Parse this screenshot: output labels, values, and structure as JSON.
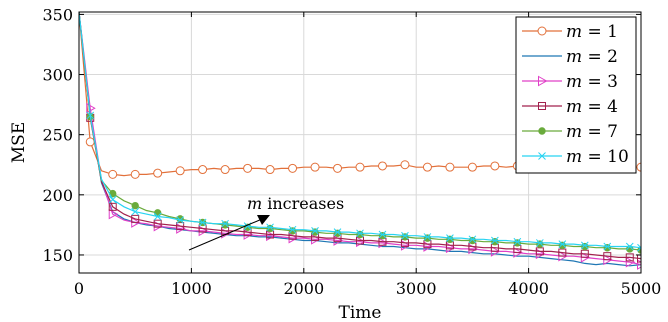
{
  "chart_data": {
    "type": "line",
    "xlabel": "Time",
    "ylabel": "MSE",
    "xlim": [
      0,
      5000
    ],
    "ylim": [
      135,
      352
    ],
    "xticks": [
      0,
      1000,
      2000,
      3000,
      4000,
      5000
    ],
    "yticks": [
      150,
      200,
      250,
      300,
      350
    ],
    "grid": true,
    "legend_position": "top-right",
    "annotation": {
      "prefix": "m",
      "text": " increases"
    },
    "series": [
      {
        "name": "m = 1",
        "label_var": "m",
        "label_val": "1",
        "color": "#e2703a",
        "marker": "circle-open",
        "x": [
          0,
          100,
          200,
          300,
          400,
          500,
          600,
          700,
          800,
          900,
          1000,
          1100,
          1200,
          1300,
          1400,
          1500,
          1600,
          1700,
          1800,
          1900,
          2000,
          2100,
          2200,
          2300,
          2400,
          2500,
          2600,
          2700,
          2800,
          2900,
          3000,
          3100,
          3200,
          3300,
          3400,
          3500,
          3600,
          3700,
          3800,
          3900,
          4000,
          4100,
          4200,
          4300,
          4400,
          4500,
          4600,
          4700,
          4800,
          4900,
          5000
        ],
        "y": [
          352,
          244,
          220,
          217,
          216,
          217,
          217,
          218,
          219,
          220,
          221,
          221,
          222,
          221,
          222,
          222,
          222,
          221,
          222,
          222,
          223,
          223,
          223,
          222,
          223,
          223,
          224,
          224,
          224,
          225,
          223,
          223,
          224,
          223,
          223,
          223,
          224,
          224,
          223,
          224,
          224,
          223,
          223,
          224,
          224,
          223,
          224,
          223,
          224,
          223,
          223
        ]
      },
      {
        "name": "m = 2",
        "label_var": "m",
        "label_val": "2",
        "color": "#1f77b4",
        "marker": "none",
        "x": [
          0,
          100,
          200,
          300,
          400,
          500,
          600,
          700,
          800,
          900,
          1000,
          1100,
          1200,
          1300,
          1400,
          1500,
          1600,
          1700,
          1800,
          1900,
          2000,
          2100,
          2200,
          2300,
          2400,
          2500,
          2600,
          2700,
          2800,
          2900,
          3000,
          3100,
          3200,
          3300,
          3400,
          3500,
          3600,
          3700,
          3800,
          3900,
          4000,
          4100,
          4200,
          4300,
          4400,
          4500,
          4600,
          4700,
          4800,
          4900,
          5000
        ],
        "y": [
          352,
          268,
          210,
          186,
          180,
          177,
          175,
          174,
          172,
          171,
          170,
          169,
          168,
          167,
          166,
          166,
          165,
          165,
          164,
          163,
          162,
          162,
          161,
          160,
          160,
          159,
          158,
          157,
          157,
          156,
          155,
          155,
          154,
          153,
          153,
          152,
          151,
          151,
          150,
          149,
          149,
          148,
          147,
          146,
          145,
          143,
          142,
          143,
          142,
          141,
          142
        ]
      },
      {
        "name": "m = 3",
        "label_var": "m",
        "label_val": "3",
        "color": "#e040c8",
        "marker": "triangle-right",
        "x": [
          0,
          100,
          200,
          300,
          400,
          500,
          600,
          700,
          800,
          900,
          1000,
          1100,
          1200,
          1300,
          1400,
          1500,
          1600,
          1700,
          1800,
          1900,
          2000,
          2100,
          2200,
          2300,
          2400,
          2500,
          2600,
          2700,
          2800,
          2900,
          3000,
          3100,
          3200,
          3300,
          3400,
          3500,
          3600,
          3700,
          3800,
          3900,
          4000,
          4100,
          4200,
          4300,
          4400,
          4500,
          4600,
          4700,
          4800,
          4900,
          5000
        ],
        "y": [
          352,
          272,
          212,
          184,
          179,
          177,
          176,
          174,
          173,
          172,
          170,
          170,
          169,
          168,
          167,
          167,
          166,
          166,
          165,
          164,
          164,
          163,
          163,
          162,
          161,
          161,
          160,
          160,
          159,
          158,
          158,
          157,
          157,
          156,
          155,
          155,
          154,
          153,
          153,
          152,
          151,
          151,
          150,
          149,
          149,
          148,
          147,
          146,
          145,
          144,
          142
        ]
      },
      {
        "name": "m = 4",
        "label_var": "m",
        "label_val": "4",
        "color": "#a2214d",
        "marker": "square-open",
        "x": [
          0,
          100,
          200,
          300,
          400,
          500,
          600,
          700,
          800,
          900,
          1000,
          1100,
          1200,
          1300,
          1400,
          1500,
          1600,
          1700,
          1800,
          1900,
          2000,
          2100,
          2200,
          2300,
          2400,
          2500,
          2600,
          2700,
          2800,
          2900,
          3000,
          3100,
          3200,
          3300,
          3400,
          3500,
          3600,
          3700,
          3800,
          3900,
          4000,
          4100,
          4200,
          4300,
          4400,
          4500,
          4600,
          4700,
          4800,
          4900,
          5000
        ],
        "y": [
          352,
          264,
          211,
          190,
          184,
          180,
          178,
          176,
          175,
          174,
          173,
          172,
          171,
          170,
          170,
          169,
          168,
          167,
          167,
          166,
          165,
          165,
          164,
          164,
          163,
          162,
          162,
          161,
          161,
          160,
          160,
          159,
          159,
          158,
          158,
          157,
          156,
          156,
          155,
          155,
          154,
          153,
          153,
          152,
          151,
          151,
          150,
          149,
          148,
          148,
          147
        ]
      },
      {
        "name": "m = 7",
        "label_var": "m",
        "label_val": "7",
        "color": "#6aab3c",
        "marker": "circle-filled",
        "x": [
          0,
          100,
          200,
          300,
          400,
          500,
          600,
          700,
          800,
          900,
          1000,
          1100,
          1200,
          1300,
          1400,
          1500,
          1600,
          1700,
          1800,
          1900,
          2000,
          2100,
          2200,
          2300,
          2400,
          2500,
          2600,
          2700,
          2800,
          2900,
          3000,
          3100,
          3200,
          3300,
          3400,
          3500,
          3600,
          3700,
          3800,
          3900,
          4000,
          4100,
          4200,
          4300,
          4400,
          4500,
          4600,
          4700,
          4800,
          4900,
          5000
        ],
        "y": [
          352,
          265,
          212,
          201,
          195,
          191,
          187,
          185,
          182,
          180,
          178,
          177,
          176,
          175,
          174,
          173,
          172,
          172,
          171,
          170,
          170,
          169,
          168,
          168,
          167,
          167,
          166,
          166,
          165,
          165,
          164,
          164,
          163,
          163,
          162,
          162,
          161,
          161,
          160,
          160,
          159,
          159,
          158,
          158,
          157,
          157,
          156,
          156,
          155,
          155,
          154
        ]
      },
      {
        "name": "m = 10",
        "label_var": "m",
        "label_val": "10",
        "color": "#27d3f2",
        "marker": "x",
        "x": [
          0,
          100,
          200,
          300,
          400,
          500,
          600,
          700,
          800,
          900,
          1000,
          1100,
          1200,
          1300,
          1400,
          1500,
          1600,
          1700,
          1800,
          1900,
          2000,
          2100,
          2200,
          2300,
          2400,
          2500,
          2600,
          2700,
          2800,
          2900,
          3000,
          3100,
          3200,
          3300,
          3400,
          3500,
          3600,
          3700,
          3800,
          3900,
          4000,
          4100,
          4200,
          4300,
          4400,
          4500,
          4600,
          4700,
          4800,
          4900,
          5000
        ],
        "y": [
          352,
          266,
          213,
          196,
          190,
          186,
          184,
          182,
          181,
          179,
          178,
          177,
          176,
          176,
          175,
          174,
          173,
          173,
          172,
          171,
          171,
          170,
          170,
          169,
          169,
          168,
          168,
          167,
          167,
          166,
          166,
          165,
          165,
          164,
          164,
          163,
          163,
          162,
          162,
          161,
          161,
          160,
          160,
          159,
          159,
          158,
          158,
          157,
          157,
          157,
          156
        ]
      }
    ]
  }
}
